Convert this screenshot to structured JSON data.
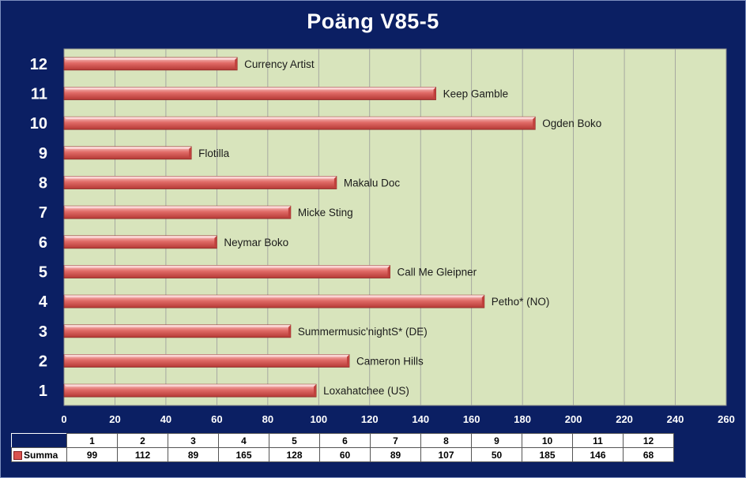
{
  "chart_data": {
    "type": "bar",
    "orientation": "horizontal",
    "title": "Poäng  V85-5",
    "categories": [
      "1",
      "2",
      "3",
      "4",
      "5",
      "6",
      "7",
      "8",
      "9",
      "10",
      "11",
      "12"
    ],
    "bar_labels": [
      "Loxahatchee (US)",
      "Cameron Hills",
      "Summermusic'nightS*  (DE)",
      "Petho*  (NO)",
      "Call Me Gleipner",
      "Neymar Boko",
      "Micke Sting",
      "Makalu Doc",
      "Flotilla",
      "Ogden Boko",
      "Keep Gamble",
      "Currency Artist"
    ],
    "series": [
      {
        "name": "Summa",
        "values": [
          99,
          112,
          89,
          165,
          128,
          60,
          89,
          107,
          50,
          185,
          146,
          68
        ]
      }
    ],
    "xlim": [
      0,
      260
    ],
    "xticks": [
      0,
      20,
      40,
      60,
      80,
      100,
      120,
      140,
      160,
      180,
      200,
      220,
      240,
      260
    ],
    "grid": "vertical",
    "data_table": true,
    "colors": {
      "bar": "#e06a66",
      "plot_bg": "#d8e4bc",
      "page_bg": "#0b1f63"
    }
  }
}
